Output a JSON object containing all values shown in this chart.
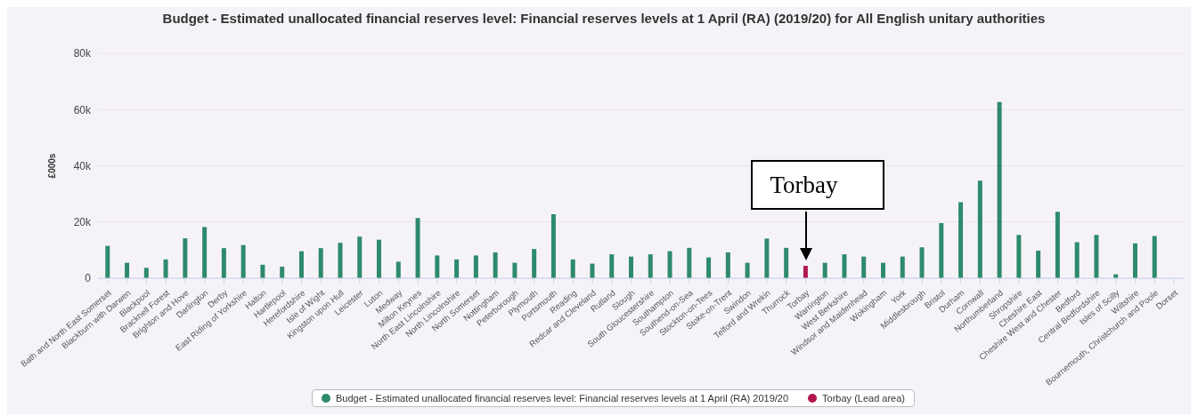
{
  "chart_data": {
    "type": "bar",
    "title": "Budget - Estimated unallocated financial reserves level: Financial reserves levels at 1 April (RA) (2019/20) for All English unitary authorities",
    "ylabel": "£000s",
    "categories": [
      "Bath and North East Somerset",
      "Blackburn with Darwen",
      "Blackpool",
      "Bracknell Forest",
      "Brighton and Hove",
      "Darlington",
      "Derby",
      "East Riding of Yorkshire",
      "Halton",
      "Hartlepool",
      "Herefordshire",
      "Isle of Wight",
      "Kingston upon Hull",
      "Leicester",
      "Luton",
      "Medway",
      "Milton Keynes",
      "North East Lincolnshire",
      "North Lincolnshire",
      "North Somerset",
      "Nottingham",
      "Peterborough",
      "Plymouth",
      "Portsmouth",
      "Reading",
      "Redcar and Cleveland",
      "Rutland",
      "Slough",
      "South Gloucestershire",
      "Southampton",
      "Southend-on-Sea",
      "Stockton-on-Tees",
      "Stoke-on-Trent",
      "Swindon",
      "Telford and Wrekin",
      "Thurrock",
      "Torbay",
      "Warrington",
      "West Berkshire",
      "Windsor and Maidenhead",
      "Wokingham",
      "York",
      "Middlesbrough",
      "Bristol",
      "Durham",
      "Cornwall",
      "Northumberland",
      "Shropshire",
      "Cheshire East",
      "Cheshire West and Chester",
      "Bedford",
      "Central Bedfordshire",
      "Isles of Scilly",
      "Wiltshire",
      "Bournemouth, Christchurch and Poole",
      "Dorset"
    ],
    "stacked": true,
    "series": [
      {
        "name": "Budget - Estimated unallocated financial reserves level: Financial reserves levels at 1 April (RA) 2019/20",
        "color": "#2e8a6c",
        "values": [
          11500,
          5500,
          3700,
          6700,
          14200,
          18200,
          10700,
          11800,
          4800,
          4100,
          9600,
          10700,
          12600,
          14800,
          13700,
          5900,
          21400,
          8100,
          6700,
          8100,
          9200,
          5500,
          10400,
          22800,
          6700,
          5200,
          8500,
          7700,
          8500,
          9600,
          10800,
          7400,
          9200,
          5500,
          14100,
          10800,
          null,
          5500,
          8500,
          7700,
          5500,
          7700,
          11000,
          19600,
          27000,
          34700,
          62700,
          15400,
          9800,
          23600,
          12800,
          15400,
          1400,
          12400,
          15000,
          null
        ]
      },
      {
        "name": "Torbay (Lead area)",
        "color": "#b01850",
        "values": [
          null,
          null,
          null,
          null,
          null,
          null,
          null,
          null,
          null,
          null,
          null,
          null,
          null,
          null,
          null,
          null,
          null,
          null,
          null,
          null,
          null,
          null,
          null,
          null,
          null,
          null,
          null,
          null,
          null,
          null,
          null,
          null,
          null,
          null,
          null,
          null,
          4400,
          null,
          null,
          null,
          null,
          null,
          null,
          null,
          null,
          null,
          null,
          null,
          null,
          null,
          null,
          null,
          null,
          null,
          null,
          null
        ]
      }
    ],
    "ylim": [
      0,
      80000
    ],
    "yticks": [
      0,
      {
        "value": 20000,
        "label": "20k"
      },
      {
        "value": 40000,
        "label": "40k"
      },
      {
        "value": 60000,
        "label": "60k"
      },
      {
        "value": 80000,
        "label": "80k"
      }
    ],
    "grid": "y",
    "legend": "bottom",
    "annotations": [
      {
        "text": "Torbay",
        "x": "Torbay",
        "y": 4400
      }
    ]
  }
}
